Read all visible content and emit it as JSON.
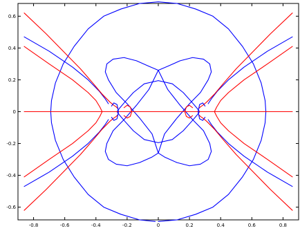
{
  "chart_data": {
    "type": "line",
    "title": "",
    "xlabel": "",
    "ylabel": "",
    "xlim": [
      -0.9,
      0.9
    ],
    "ylim": [
      -0.68,
      0.68
    ],
    "xticks": [
      -0.8,
      -0.6,
      -0.4,
      -0.2,
      0,
      0.2,
      0.4,
      0.6,
      0.8
    ],
    "xtick_labels": [
      "-0.8",
      "-0.6",
      "-0.4",
      "-0.2",
      "0",
      "0.2",
      "0.4",
      "0.6",
      "0.8"
    ],
    "yticks": [
      -0.6,
      -0.4,
      -0.2,
      0,
      0.2,
      0.4,
      0.6
    ],
    "ytick_labels": [
      "-0.6",
      "-0.4",
      "-0.2",
      "0",
      "0.2",
      "0.4",
      "0.6"
    ],
    "grid": false,
    "colors": {
      "blue": "#0000ff",
      "red": "#ff0000",
      "frame": "#000000"
    },
    "series": [
      {
        "color": "#0000ff",
        "x": [
          0.0,
          0.12,
          0.24,
          0.35,
          0.45,
          0.54,
          0.61,
          0.66,
          0.685,
          0.69,
          0.685,
          0.66,
          0.61,
          0.54,
          0.45,
          0.35,
          0.24,
          0.12,
          0.0,
          -0.12,
          -0.24,
          -0.35,
          -0.45,
          -0.54,
          -0.61,
          -0.66,
          -0.685,
          -0.69,
          -0.685,
          -0.66,
          -0.61,
          -0.54,
          -0.45,
          -0.35,
          -0.24,
          -0.12,
          -0.02
        ],
        "y": [
          -0.69,
          -0.68,
          -0.645,
          -0.6,
          -0.52,
          -0.41,
          -0.3,
          -0.18,
          -0.07,
          0.0,
          0.07,
          0.18,
          0.3,
          0.41,
          0.52,
          0.6,
          0.645,
          0.68,
          0.69,
          0.68,
          0.645,
          0.6,
          0.52,
          0.41,
          0.3,
          0.18,
          0.07,
          0.0,
          -0.07,
          -0.18,
          -0.3,
          -0.41,
          -0.52,
          -0.6,
          -0.645,
          -0.68,
          -0.69
        ]
      },
      {
        "color": "#0000ff",
        "x": [
          0.0,
          0.09,
          0.16,
          0.215,
          0.25,
          0.265,
          0.25,
          0.215,
          0.16,
          0.09,
          0.0,
          -0.09,
          -0.16,
          -0.215,
          -0.25,
          -0.265,
          -0.25,
          -0.215,
          -0.16,
          -0.09,
          0.0
        ],
        "y": [
          0.195,
          0.175,
          0.12,
          0.06,
          0.02,
          0.0,
          -0.02,
          -0.06,
          -0.12,
          -0.175,
          -0.195,
          -0.175,
          -0.12,
          -0.06,
          -0.02,
          0.0,
          0.02,
          0.06,
          0.12,
          0.175,
          0.195
        ]
      },
      {
        "color": "#0000ff",
        "x": [
          0.0,
          0.06,
          0.14,
          0.22,
          0.29,
          0.33,
          0.34,
          0.32,
          0.27,
          0.2,
          0.12,
          0.04,
          0.0,
          -0.04,
          -0.12,
          -0.2,
          -0.27,
          -0.32,
          -0.34,
          -0.33,
          -0.29,
          -0.22,
          -0.14,
          -0.06,
          0.0,
          0.06,
          0.14,
          0.22,
          0.29,
          0.33,
          0.34,
          0.32,
          0.27,
          0.2,
          0.12,
          0.04,
          0.0,
          -0.04,
          -0.12,
          -0.2,
          -0.27,
          -0.32,
          -0.34,
          -0.33,
          -0.29,
          -0.22,
          -0.14,
          -0.06,
          0.0
        ],
        "y": [
          0.26,
          0.285,
          0.32,
          0.34,
          0.33,
          0.3,
          0.25,
          0.2,
          0.12,
          0.05,
          -0.04,
          -0.14,
          -0.26,
          -0.285,
          -0.32,
          -0.34,
          -0.33,
          -0.3,
          -0.25,
          -0.2,
          -0.12,
          -0.05,
          0.04,
          0.14,
          0.26,
          0.14,
          0.04,
          -0.05,
          -0.12,
          -0.2,
          -0.25,
          -0.3,
          -0.33,
          -0.34,
          -0.32,
          -0.285,
          -0.26,
          -0.14,
          -0.04,
          0.05,
          0.12,
          0.2,
          0.25,
          0.3,
          0.33,
          0.34,
          0.32,
          0.285,
          0.26
        ]
      },
      {
        "color": "#0000ff",
        "x": [
          -0.86,
          -0.7,
          -0.55,
          -0.45,
          -0.38,
          -0.34,
          -0.32
        ],
        "y": [
          0.47,
          0.38,
          0.28,
          0.2,
          0.13,
          0.08,
          0.05
        ]
      },
      {
        "color": "#0000ff",
        "x": [
          -0.86,
          -0.7,
          -0.55,
          -0.45,
          -0.38,
          -0.34,
          -0.32
        ],
        "y": [
          -0.47,
          -0.38,
          -0.28,
          -0.2,
          -0.13,
          -0.08,
          -0.05
        ]
      },
      {
        "color": "#0000ff",
        "x": [
          0.86,
          0.7,
          0.55,
          0.45,
          0.38,
          0.34,
          0.32
        ],
        "y": [
          0.47,
          0.38,
          0.28,
          0.2,
          0.13,
          0.08,
          0.05
        ]
      },
      {
        "color": "#0000ff",
        "x": [
          0.86,
          0.7,
          0.55,
          0.45,
          0.38,
          0.34,
          0.32
        ],
        "y": [
          -0.47,
          -0.38,
          -0.28,
          -0.2,
          -0.13,
          -0.08,
          -0.05
        ]
      },
      {
        "color": "#ff0000",
        "x": [
          -0.86,
          0.86
        ],
        "y": [
          0.0,
          0.0
        ]
      },
      {
        "color": "#ff0000",
        "x": [
          -0.86,
          -0.7,
          -0.55,
          -0.45,
          -0.4,
          -0.375,
          -0.36,
          -0.375,
          -0.4,
          -0.45,
          -0.55,
          -0.7,
          -0.86
        ],
        "y": [
          0.41,
          0.3,
          0.2,
          0.12,
          0.07,
          0.03,
          0.0,
          -0.03,
          -0.07,
          -0.12,
          -0.2,
          -0.3,
          -0.41
        ]
      },
      {
        "color": "#ff0000",
        "x": [
          0.86,
          0.7,
          0.55,
          0.45,
          0.4,
          0.375,
          0.36,
          0.375,
          0.4,
          0.45,
          0.55,
          0.7,
          0.86
        ],
        "y": [
          0.41,
          0.3,
          0.2,
          0.12,
          0.07,
          0.03,
          0.0,
          -0.03,
          -0.07,
          -0.12,
          -0.2,
          -0.3,
          -0.41
        ]
      },
      {
        "color": "#ff0000",
        "x": [
          -0.86,
          -0.72,
          -0.6,
          -0.5,
          -0.42,
          -0.36,
          -0.31,
          -0.285,
          -0.27,
          -0.26
        ],
        "y": [
          0.62,
          0.49,
          0.37,
          0.27,
          0.18,
          0.11,
          0.06,
          0.04,
          0.03,
          0.02
        ]
      },
      {
        "color": "#ff0000",
        "x": [
          -0.86,
          -0.72,
          -0.6,
          -0.5,
          -0.42,
          -0.36,
          -0.31,
          -0.285,
          -0.27,
          -0.26
        ],
        "y": [
          -0.62,
          -0.49,
          -0.37,
          -0.27,
          -0.18,
          -0.11,
          -0.06,
          -0.04,
          -0.03,
          -0.02
        ]
      },
      {
        "color": "#ff0000",
        "x": [
          0.86,
          0.72,
          0.6,
          0.5,
          0.42,
          0.36,
          0.31,
          0.285,
          0.27,
          0.26
        ],
        "y": [
          0.62,
          0.49,
          0.37,
          0.27,
          0.18,
          0.11,
          0.06,
          0.04,
          0.03,
          0.02
        ]
      },
      {
        "color": "#ff0000",
        "x": [
          0.86,
          0.72,
          0.6,
          0.5,
          0.42,
          0.36,
          0.31,
          0.285,
          0.27,
          0.26
        ],
        "y": [
          -0.62,
          -0.49,
          -0.37,
          -0.27,
          -0.18,
          -0.11,
          -0.06,
          -0.04,
          -0.03,
          -0.02
        ]
      },
      {
        "color": "#0000ff",
        "x": [
          -0.3,
          -0.285,
          -0.265,
          -0.255,
          -0.265,
          -0.285,
          -0.3
        ],
        "y": [
          0.035,
          0.055,
          0.045,
          0.0,
          -0.045,
          -0.055,
          -0.035
        ]
      },
      {
        "color": "#0000ff",
        "x": [
          0.3,
          0.285,
          0.265,
          0.255,
          0.265,
          0.285,
          0.3
        ],
        "y": [
          0.035,
          0.055,
          0.045,
          0.0,
          -0.045,
          -0.055,
          -0.035
        ]
      },
      {
        "color": "#ff0000",
        "x": [
          -0.22,
          -0.2,
          -0.18,
          -0.17,
          -0.18,
          -0.2,
          -0.22
        ],
        "y": [
          0.025,
          0.04,
          0.03,
          0.0,
          -0.03,
          -0.04,
          -0.025
        ]
      },
      {
        "color": "#ff0000",
        "x": [
          0.22,
          0.2,
          0.18,
          0.17,
          0.18,
          0.2,
          0.22
        ],
        "y": [
          0.025,
          0.04,
          0.03,
          0.0,
          -0.03,
          -0.04,
          -0.025
        ]
      }
    ]
  }
}
